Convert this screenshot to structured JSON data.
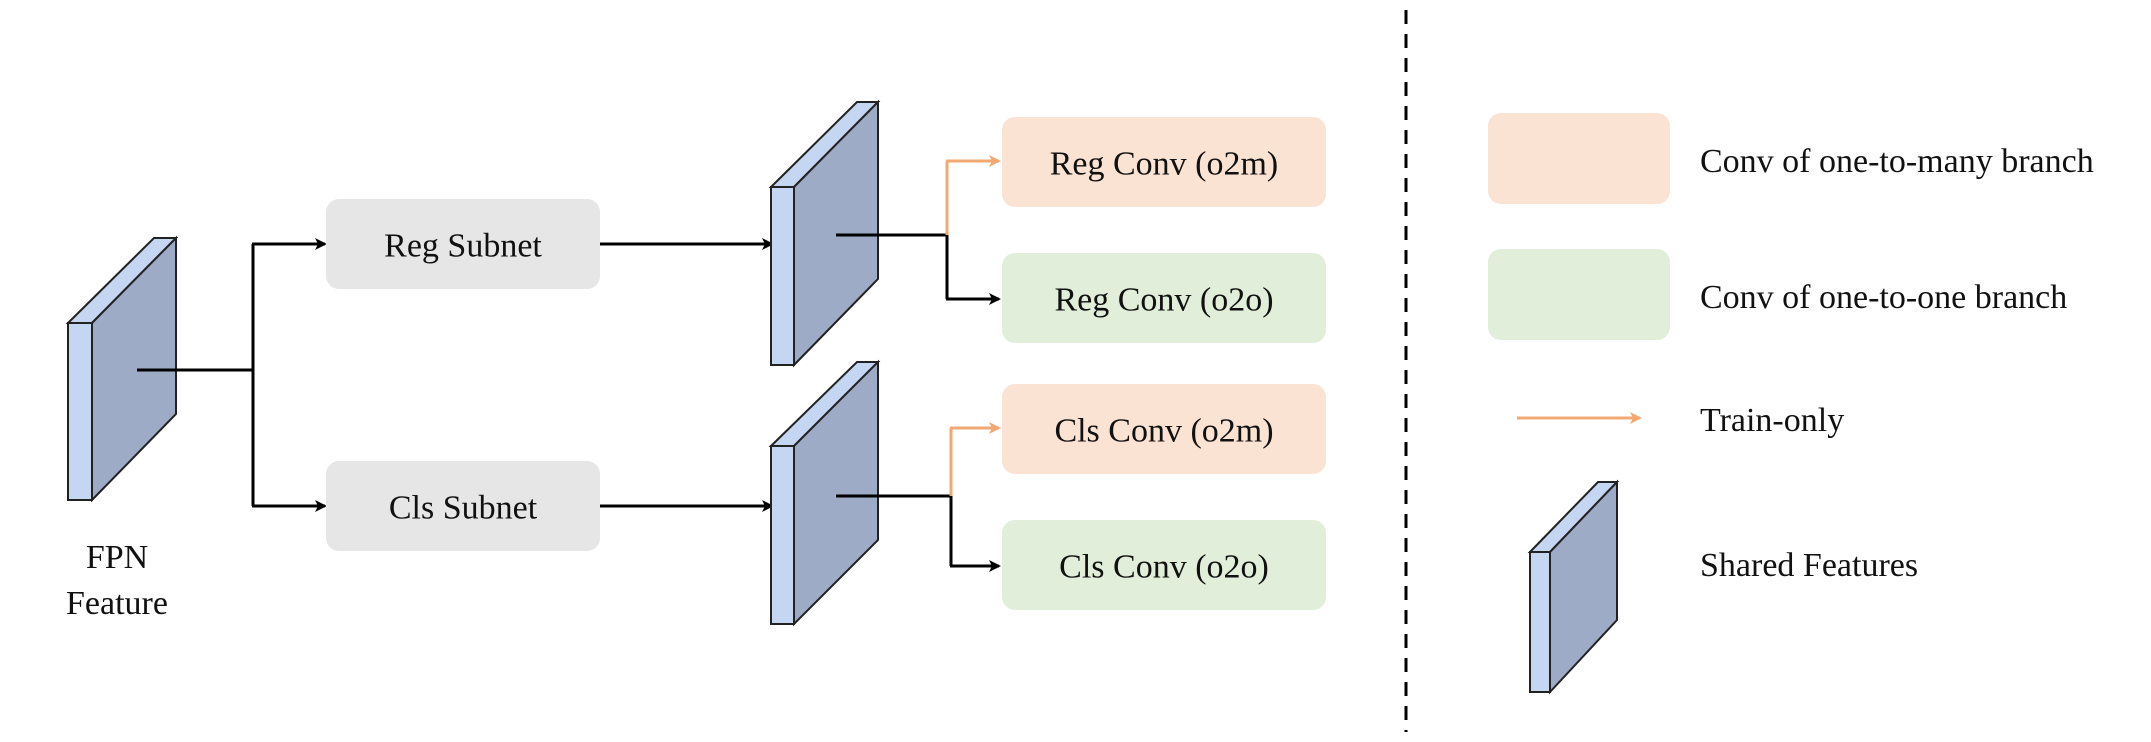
{
  "colors": {
    "subnet_fill": "#e6e6e6",
    "o2m_fill": "#fbe3d4",
    "o2o_fill": "#e1efda",
    "feature_face": "#9eabc7",
    "feature_side": "#c5d6f2",
    "train_only_arrow": "#f2a872",
    "arrow": "#000000"
  },
  "input": {
    "label_line1": "FPN",
    "label_line2": "Feature"
  },
  "subnets": {
    "reg": "Reg Subnet",
    "cls": "Cls Subnet"
  },
  "heads": {
    "reg_o2m": "Reg Conv (o2m)",
    "reg_o2o": "Reg Conv (o2o)",
    "cls_o2m": "Cls Conv (o2m)",
    "cls_o2o": "Cls Conv (o2o)"
  },
  "legend": {
    "one_to_many": "Conv of one-to-many branch",
    "one_to_one": "Conv of one-to-one branch",
    "train_only": "Train-only",
    "shared_features": "Shared Features"
  }
}
